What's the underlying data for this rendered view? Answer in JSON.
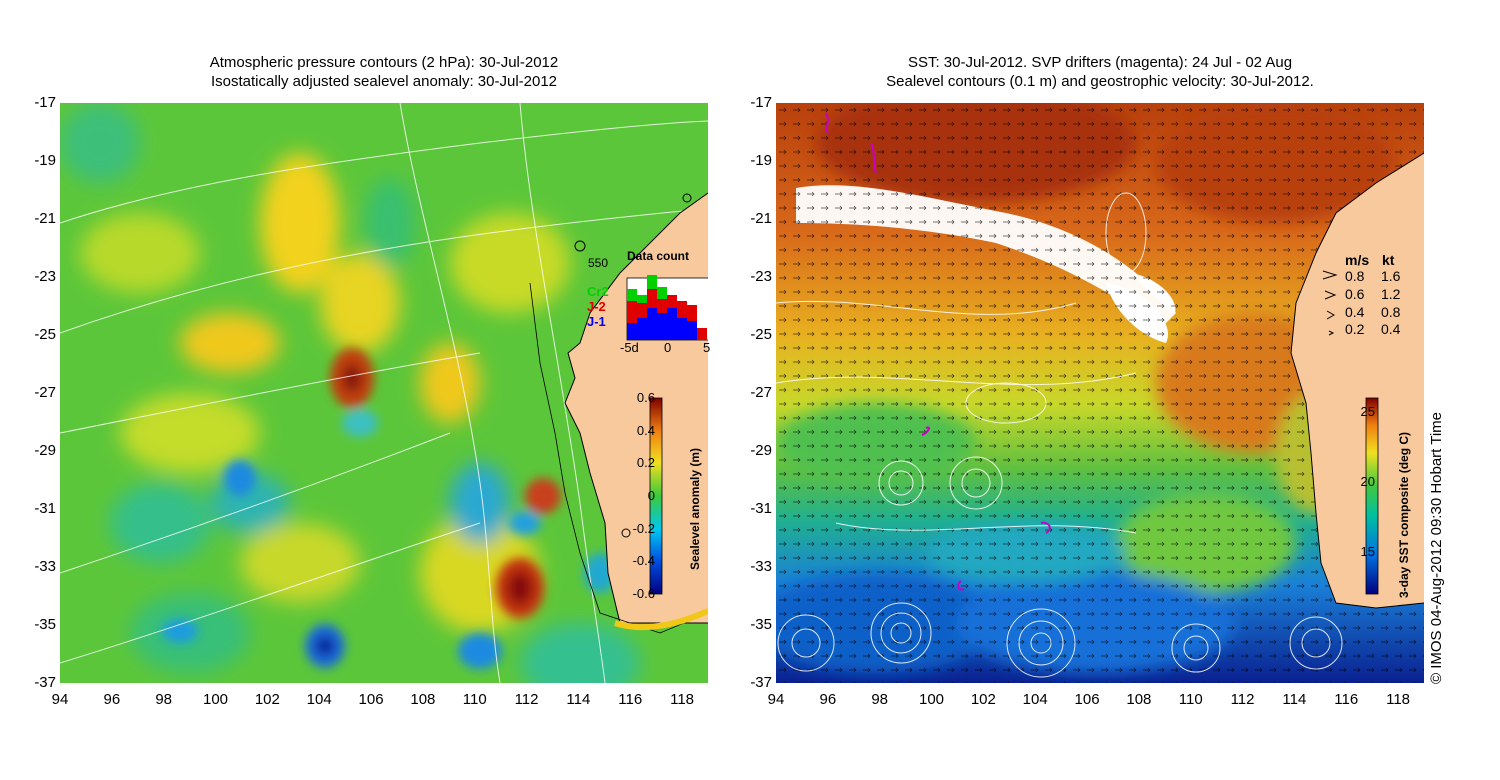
{
  "left_panel": {
    "title_line1": "Atmospheric pressure contours (2 hPa): 30-Jul-2012",
    "title_line2": "Isostatically adjusted sealevel anomaly: 30-Jul-2012",
    "colorbar": {
      "label": "Sealevel anomaly (m)",
      "ticks": [
        "0.6",
        "0.4",
        "0.2",
        "0",
        "-0.2",
        "-0.4",
        "-0.6"
      ],
      "range": [
        -0.6,
        0.6
      ]
    },
    "data_count": {
      "title": "Data count",
      "legend": [
        {
          "name": "Cr2",
          "color": "#00d000"
        },
        {
          "name": "J-2",
          "color": "#e00000"
        },
        {
          "name": "J-1",
          "color": "#0000ff"
        }
      ],
      "x_labels": [
        "-5d",
        "0",
        "5"
      ]
    },
    "station_label": "550"
  },
  "right_panel": {
    "title_line1": "SST: 30-Jul-2012. SVP drifters (magenta): 24 Jul - 02 Aug",
    "title_line2": "Sealevel contours (0.1 m) and geostrophic velocity: 30-Jul-2012.",
    "colorbar": {
      "label": "3-day SST composite (deg C)",
      "ticks": [
        "25",
        "20",
        "15"
      ],
      "range": [
        12,
        26
      ]
    },
    "velocity_legend": {
      "header_ms": "m/s",
      "header_kt": "kt",
      "rows": [
        {
          "ms": "0.8",
          "kt": "1.6"
        },
        {
          "ms": "0.6",
          "kt": "1.2"
        },
        {
          "ms": "0.4",
          "kt": "0.8"
        },
        {
          "ms": "0.2",
          "kt": "0.4"
        }
      ]
    }
  },
  "axes": {
    "y_ticks": [
      "-17",
      "-19",
      "-21",
      "-23",
      "-25",
      "-27",
      "-29",
      "-31",
      "-33",
      "-35",
      "-37"
    ],
    "x_ticks": [
      "94",
      "96",
      "98",
      "100",
      "102",
      "104",
      "106",
      "108",
      "110",
      "112",
      "114",
      "116",
      "118"
    ],
    "lat_range": [
      -37,
      -17
    ],
    "lon_range": [
      94,
      119
    ]
  },
  "credit": "© IMOS 04-Aug-2012 09:30 Hobart Time",
  "colors": {
    "land": "#f9c99e",
    "anomaly_base": "#5cc63a",
    "sst_warm": "#b8400c",
    "sst_cool": "#1670d8",
    "cloud": "#ffffff"
  }
}
